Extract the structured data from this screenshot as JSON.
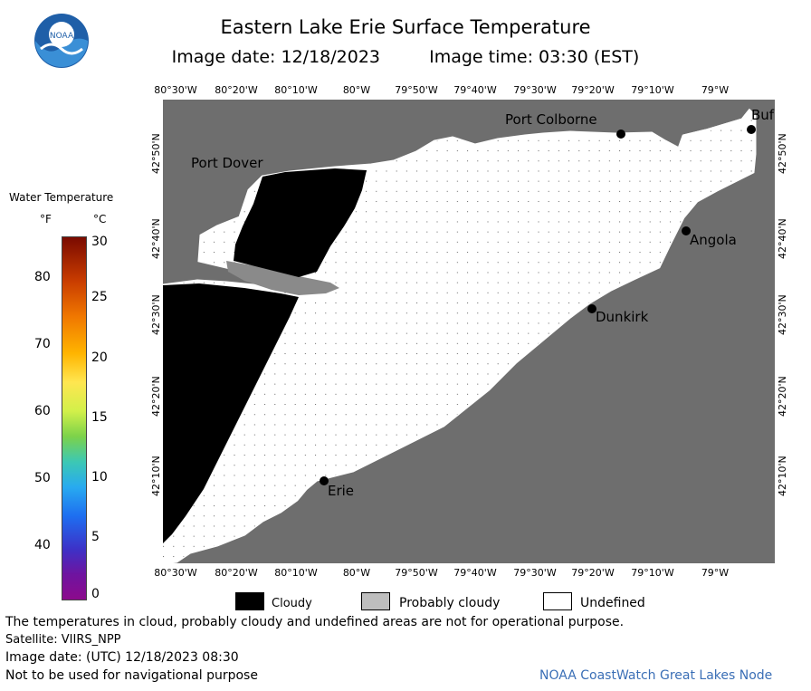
{
  "header": {
    "title": "Eastern Lake Erie Surface Temperature",
    "image_date": "Image date: 12/18/2023",
    "image_time": "Image time: 03:30 (EST)"
  },
  "logo": {
    "text": "NOAA"
  },
  "map": {
    "lon_labels": [
      "80°30'W",
      "80°20'W",
      "80°10'W",
      "80°W",
      "79°50'W",
      "79°40'W",
      "79°30'W",
      "79°20'W",
      "79°10'W",
      "79°W"
    ],
    "lat_labels": [
      "42°50'N",
      "42°40'N",
      "42°30'N",
      "42°20'N",
      "42°10'N"
    ],
    "cities": {
      "port_dover": "Port Dover",
      "port_colborne": "Port Colborne",
      "buffalo": "Buf",
      "angola": "Angola",
      "dunkirk": "Dunkirk",
      "erie": "Erie"
    },
    "colors": {
      "land": "#6e6e6e",
      "cloud": "#000000",
      "probably_cloudy": "#bebebe",
      "undefined": "#ffffff"
    }
  },
  "colorbar": {
    "title": "Water Temperature",
    "unit_f": "°F",
    "unit_c": "°C",
    "f_ticks": [
      "80",
      "70",
      "60",
      "50",
      "40"
    ],
    "c_ticks": [
      "30",
      "25",
      "20",
      "15",
      "10",
      "5",
      "0"
    ]
  },
  "legend": {
    "cloudy": "Cloudy",
    "probably_cloudy": "Probably cloudy",
    "undefined": "Undefined"
  },
  "footer": {
    "line1": "The temperatures in cloud, probably cloudy and undefined areas are not for operational purpose.",
    "line2": "Satellite: VIIRS_NPP",
    "line3": "Image date: (UTC) 12/18/2023  08:30",
    "line4": "Not to be used for navigational purpose",
    "credit": "NOAA CoastWatch Great Lakes Node"
  }
}
